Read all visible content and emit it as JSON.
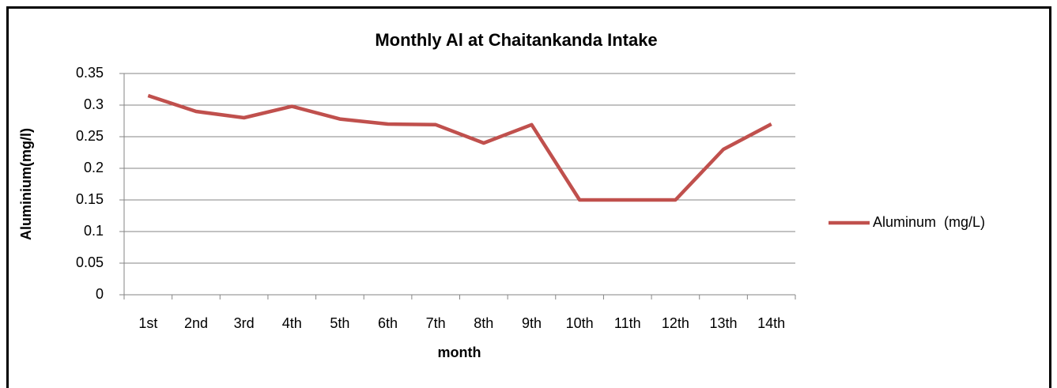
{
  "chart_data": {
    "type": "line",
    "title": "Monthly Al at Chaitankanda Intake",
    "x_label": "month",
    "y_label": "Aluminium(mg/l)",
    "categories": [
      "1st",
      "2nd",
      "3rd",
      "4th",
      "5th",
      "6th",
      "7th",
      "8th",
      "9th",
      "10th",
      "11th",
      "12th",
      "13th",
      "14th"
    ],
    "series": [
      {
        "name": "Aluminum  (mg/L)",
        "color": "#c0504d",
        "values": [
          0.315,
          0.29,
          0.28,
          0.298,
          0.278,
          0.27,
          0.269,
          0.24,
          0.269,
          0.15,
          0.15,
          0.15,
          0.23,
          0.27
        ]
      }
    ],
    "ylim": [
      0,
      0.35
    ],
    "yticks": [
      0,
      0.05,
      0.1,
      0.15,
      0.2,
      0.25,
      0.3,
      0.35
    ],
    "grid": true,
    "legend": "right"
  }
}
